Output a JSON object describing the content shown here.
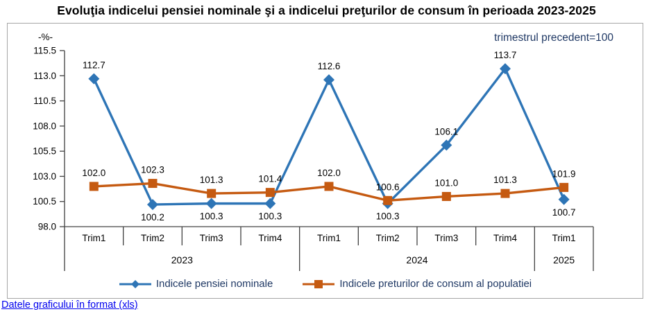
{
  "page": {
    "link_label": "Datele graficului în format (xls)"
  },
  "chart_data": {
    "type": "line",
    "title": "Evoluţia indicelui pensiei nominale şi a indicelui preţurilor de consum în perioada 2023-2025",
    "unit_label": "-%-",
    "note": "trimestrul precedent=100",
    "categories": [
      "Trim1",
      "Trim2",
      "Trim3",
      "Trim4",
      "Trim1",
      "Trim2",
      "Trim3",
      "Trim4",
      "Trim1"
    ],
    "year_groups": [
      {
        "label": "2023",
        "span": 4
      },
      {
        "label": "2024",
        "span": 4
      },
      {
        "label": "2025",
        "span": 1
      }
    ],
    "ylim": [
      98.0,
      115.5
    ],
    "yticks": [
      115.5,
      113.0,
      110.5,
      108.0,
      105.5,
      103.0,
      100.5,
      98.0
    ],
    "grid": false,
    "legend_position": "bottom",
    "series": [
      {
        "name": "Indicele pensiei nominale",
        "color": "#2E75B6",
        "marker": "diamond",
        "values": [
          112.7,
          100.2,
          100.3,
          100.3,
          112.6,
          100.3,
          106.1,
          113.7,
          100.7
        ],
        "label_pos": [
          "above",
          "below",
          "below",
          "below",
          "above",
          "below",
          "above",
          "above",
          "below"
        ]
      },
      {
        "name": "Indicele preturilor de consum al populatiei",
        "color": "#C55A11",
        "marker": "square",
        "values": [
          102.0,
          102.3,
          101.3,
          101.4,
          102.0,
          100.6,
          101.0,
          101.3,
          101.9
        ],
        "label_pos": [
          "above",
          "above",
          "above",
          "above",
          "above",
          "above",
          "above",
          "above",
          "above"
        ]
      }
    ],
    "colors": {
      "axis_line": "#404040",
      "tick_text": "#000000",
      "data_label": "#000000",
      "note_text": "#1F3864",
      "border": "#A6A6A6",
      "link": "#0000EE"
    }
  }
}
